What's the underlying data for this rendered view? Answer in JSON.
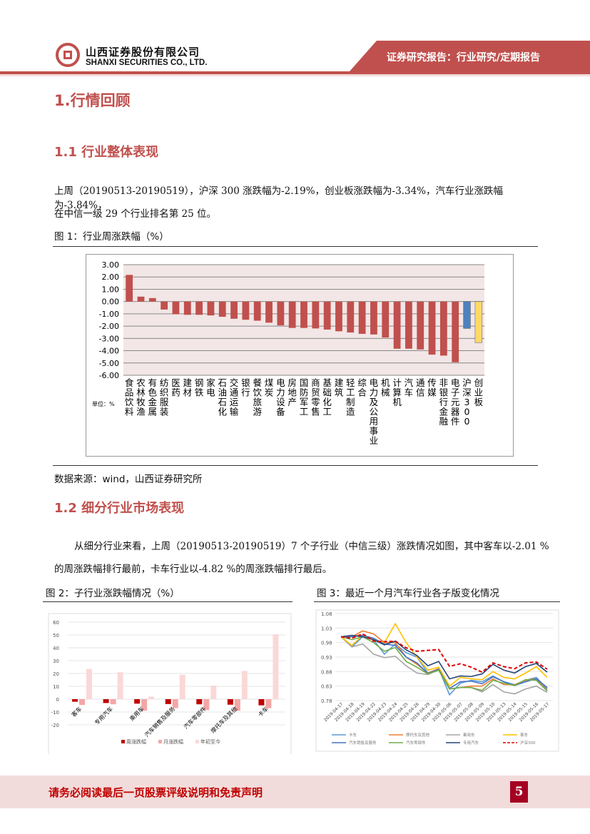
{
  "header": {
    "company_cn": "山西证券股份有限公司",
    "company_en": "SHANXI SECURITIES CO., LTD.",
    "report_type": "证券研究报告：行业研究/定期报告"
  },
  "section1": {
    "title": "1.行情回顾"
  },
  "section1_1": {
    "title": "1.1 行业整体表现",
    "para1": "上周（20190513-20190519），沪深 300 涨跌幅为-2.19%，创业板涨跌幅为-3.34%，汽车行业涨跌幅为-3.84%，",
    "para2": "在中信一级 29 个行业排名第 25 位。",
    "fig_caption": "图 1：行业周涨跌幅（%）",
    "source": "数据来源：wind，山西证券研究所"
  },
  "section1_2": {
    "title": "1.2 细分行业市场表现",
    "para1": "从细分行业来看，上周（20190513-20190519）7 个子行业（中信三级）涨跌情况如图，其中客车以-2.01 %",
    "para2": "的周涨跌幅排行最前，卡车行业以-4.82 %的周涨跌幅排行最后。",
    "fig2_caption": "图 2：子行业涨跌幅情况（%）",
    "fig3_caption": "图 3：最近一个月汽车行业各子版变化情况"
  },
  "footer": {
    "disclaimer": "请务必阅读最后一页股票评级说明和免责声明",
    "page": "5"
  },
  "colors": {
    "accent": "#c0504d",
    "bar": "#c0504d",
    "hs300": "#4f81bd",
    "cyb": "#ffd966"
  },
  "chart_data": [
    {
      "type": "bar",
      "title": "",
      "unit_label": "单位：%",
      "ylim": [
        -6,
        3
      ],
      "yticks": [
        "3.00",
        "2.00",
        "1.00",
        "0.00",
        "-1.00",
        "-2.00",
        "-3.00",
        "-4.00",
        "-5.00",
        "-6.00"
      ],
      "categories": [
        "食品饮料",
        "农林牧渔",
        "有色金属",
        "纺织服装",
        "医药",
        "建材",
        "钢铁",
        "家电",
        "石油石化",
        "交通运输",
        "银行",
        "餐饮旅游",
        "煤炭",
        "电力设备",
        "房地产",
        "国防军工",
        "商贸零售",
        "基础化工",
        "建筑",
        "轻工制造",
        "综合",
        "电力及公用事业",
        "机械",
        "计算机",
        "汽车",
        "通信",
        "传媒",
        "非银行金融",
        "电子元器件",
        "沪深300",
        "创业板"
      ],
      "values": [
        2.17,
        0.4,
        0.28,
        -0.65,
        -1.03,
        -1.08,
        -1.08,
        -1.13,
        -1.24,
        -1.4,
        -1.48,
        -1.56,
        -1.72,
        -1.94,
        -2.15,
        -2.15,
        -2.19,
        -2.28,
        -2.42,
        -2.52,
        -2.63,
        -2.68,
        -2.93,
        -3.84,
        -3.84,
        -3.9,
        -4.32,
        -4.4,
        -4.94,
        -2.19,
        -3.34
      ]
    },
    {
      "type": "bar",
      "ylim": [
        -20,
        60
      ],
      "yticks": [
        "60",
        "50",
        "40",
        "30",
        "20",
        "10",
        "0",
        "-10",
        "-20"
      ],
      "categories": [
        "客车",
        "专用汽车",
        "乘用车",
        "汽车销售及服务",
        "汽车零部件",
        "摩托车及其他",
        "卡车"
      ],
      "series": [
        {
          "name": "周涨跌幅",
          "color": "#c00000",
          "values": [
            -2.01,
            -3.0,
            -3.5,
            -3.8,
            -4.0,
            -4.3,
            -4.82
          ]
        },
        {
          "name": "月涨跌幅",
          "color": "#f4a6a6",
          "values": [
            -4.5,
            -4.0,
            -9.0,
            -7.0,
            -8.5,
            -9.0,
            -7.0
          ]
        },
        {
          "name": "年初至今",
          "color": "#fbd8d8",
          "values": [
            23.5,
            21.0,
            2.0,
            19.0,
            10.5,
            22.0,
            50.5
          ]
        }
      ]
    },
    {
      "type": "line",
      "ylim": [
        0.78,
        1.08
      ],
      "yticks": [
        "1.08",
        "1.03",
        "0.98",
        "0.93",
        "0.88",
        "0.83",
        "0.78"
      ],
      "x": [
        "2019-04-17",
        "2019-04-18",
        "2019-04-19",
        "2019-04-22",
        "2019-04-23",
        "2019-04-24",
        "2019-04-25",
        "2019-04-26",
        "2019-04-29",
        "2019-04-30",
        "2019-05-06",
        "2019-05-07",
        "2019-05-08",
        "2019-05-09",
        "2019-05-10",
        "2019-05-13",
        "2019-05-14",
        "2019-05-15",
        "2019-05-16",
        "2019-05-17"
      ],
      "series": [
        {
          "name": "卡车",
          "color": "#5b9bd5",
          "values": [
            1.0,
            0.965,
            1.0,
            0.99,
            0.94,
            0.975,
            0.945,
            0.93,
            0.875,
            0.89,
            0.8,
            0.84,
            0.85,
            0.845,
            0.865,
            0.845,
            0.835,
            0.85,
            0.86,
            0.82
          ]
        },
        {
          "name": "摩托车及其他",
          "color": "#ed7d31",
          "values": [
            1.0,
            1.0,
            1.02,
            1.01,
            0.98,
            0.98,
            0.93,
            0.905,
            0.875,
            0.89,
            0.82,
            0.825,
            0.83,
            0.83,
            0.855,
            0.835,
            0.835,
            0.85,
            0.855,
            0.815
          ]
        },
        {
          "name": "乘用车",
          "color": "#a5a5a5",
          "values": [
            1.0,
            0.965,
            0.975,
            0.94,
            0.928,
            0.933,
            0.9,
            0.875,
            0.87,
            0.885,
            0.82,
            0.825,
            0.825,
            0.81,
            0.835,
            0.81,
            0.803,
            0.82,
            0.83,
            0.808
          ]
        },
        {
          "name": "客车",
          "color": "#ffc000",
          "values": [
            1.0,
            0.97,
            1.005,
            0.99,
            0.98,
            1.045,
            0.98,
            0.93,
            0.885,
            0.895,
            0.83,
            0.86,
            0.855,
            0.852,
            0.88,
            0.86,
            0.855,
            0.875,
            0.897,
            0.86
          ]
        },
        {
          "name": "汽车销售及服务",
          "color": "#4472c4",
          "values": [
            1.0,
            1.0,
            1.005,
            0.995,
            0.975,
            0.97,
            0.93,
            0.91,
            0.873,
            0.888,
            0.822,
            0.845,
            0.847,
            0.838,
            0.862,
            0.845,
            0.832,
            0.845,
            0.855,
            0.825
          ]
        },
        {
          "name": "汽车零部件",
          "color": "#70ad47",
          "values": [
            1.0,
            0.99,
            1.0,
            0.98,
            0.95,
            0.963,
            0.915,
            0.895,
            0.872,
            0.885,
            0.82,
            0.825,
            0.825,
            0.815,
            0.85,
            0.84,
            0.832,
            0.852,
            0.85,
            0.813
          ]
        },
        {
          "name": "专用汽车",
          "color": "#264478",
          "values": [
            1.0,
            1.005,
            1.0,
            0.99,
            0.972,
            0.985,
            0.955,
            0.935,
            0.9,
            0.915,
            0.855,
            0.865,
            0.863,
            0.872,
            0.905,
            0.885,
            0.875,
            0.897,
            0.908,
            0.878
          ]
        },
        {
          "name": "沪深300",
          "color": "#e00000",
          "dashed": true,
          "values": [
            1.0,
            0.995,
            1.01,
            0.985,
            0.983,
            0.985,
            0.962,
            0.95,
            0.953,
            0.956,
            0.898,
            0.907,
            0.895,
            0.878,
            0.91,
            0.897,
            0.89,
            0.91,
            0.913,
            0.888
          ]
        }
      ]
    }
  ]
}
